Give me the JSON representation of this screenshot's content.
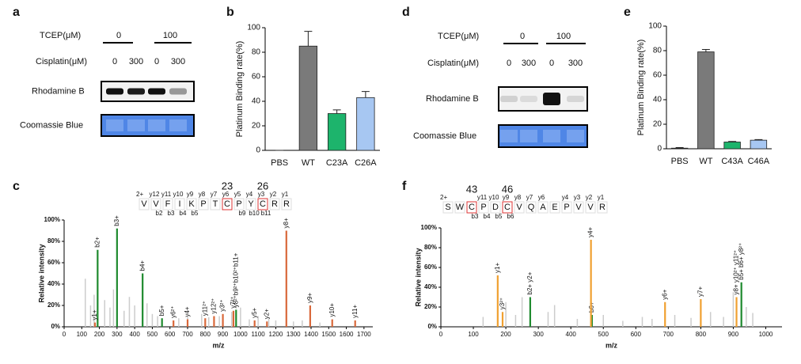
{
  "panel_labels": [
    "a",
    "b",
    "c",
    "d",
    "e",
    "f"
  ],
  "gels": [
    {
      "tcep_label": "TCEP(μM)",
      "tcep_levels": [
        "0",
        "100"
      ],
      "cisplatin_label": "Cisplatin(μM)",
      "cisplatin_levels": [
        "0",
        "300",
        "0",
        "300"
      ],
      "rows": [
        "Rhodamine B",
        "Coomassie Blue"
      ]
    },
    {
      "tcep_label": "TCEP(μM)",
      "tcep_levels": [
        "0",
        "100"
      ],
      "cisplatin_label": "Cisplatin(μM)",
      "cisplatin_levels": [
        "0",
        "300",
        "0",
        "300"
      ],
      "rows": [
        "Rhodamine B",
        "Coomassie Blue"
      ]
    }
  ],
  "peptides": [
    {
      "charge": "2+",
      "residues": [
        "V",
        "V",
        "F",
        "I",
        "K",
        "P",
        "T",
        "C",
        "P",
        "Y",
        "C",
        "R",
        "R"
      ],
      "sites": [
        "23",
        "26"
      ],
      "top_ions": [
        "y12",
        "y11",
        "y10",
        "y9",
        "y8",
        "y7",
        "y6",
        "y5",
        "y4",
        "y3",
        "y2",
        "y1"
      ],
      "bottom_ions": [
        "b2",
        "b3",
        "b4",
        "b5",
        "b9",
        "b10",
        "b11"
      ]
    },
    {
      "charge": "2+",
      "residues": [
        "S",
        "W",
        "C",
        "P",
        "D",
        "C",
        "V",
        "Q",
        "A",
        "E",
        "P",
        "V",
        "V",
        "R"
      ],
      "sites": [
        "43",
        "46"
      ],
      "top_ions": [
        "y11",
        "y10",
        "y9",
        "y8",
        "y7",
        "y6",
        "y4",
        "y3",
        "y2",
        "y1"
      ],
      "bottom_ions": [
        "b3",
        "b4",
        "b5",
        "b6"
      ]
    }
  ],
  "chart_data": [
    {
      "type": "bar",
      "y_label": "Platinum Binding rate(%)",
      "categories": [
        "PBS",
        "WT",
        "C23A",
        "C26A"
      ],
      "values": [
        0,
        85,
        30,
        43
      ],
      "errors": [
        0,
        12,
        3,
        5
      ],
      "colors": [
        "#555555",
        "#7a7a7a",
        "#1db46c",
        "#a7c7f2"
      ],
      "ylim": [
        0,
        100
      ],
      "yticks": [
        0,
        20,
        40,
        60,
        80,
        100
      ]
    },
    {
      "type": "spectrum",
      "x_label": "m/z",
      "y_label": "Relative intensity",
      "xlim": [
        0,
        1750
      ],
      "xticks": [
        0,
        100,
        200,
        300,
        400,
        500,
        600,
        700,
        800,
        900,
        1000,
        1100,
        1200,
        1300,
        1400,
        1500,
        1600,
        1700
      ],
      "ylim": [
        0,
        100
      ],
      "yticks": [
        {
          "value": 0,
          "label": "0%"
        },
        {
          "value": 20,
          "label": "20%"
        },
        {
          "value": 40,
          "label": "40%"
        },
        {
          "value": 60,
          "label": "60%"
        },
        {
          "value": 80,
          "label": "80%"
        },
        {
          "value": 100,
          "label": "100%"
        }
      ],
      "series": [
        {
          "color": "#cccccc",
          "x": [
            120,
            150,
            170,
            230,
            260,
            280,
            340,
            370,
            400,
            470,
            500,
            530,
            650,
            700,
            780,
            820,
            880,
            950,
            1000,
            1050,
            1100,
            1160,
            1200,
            1300,
            1350,
            1450
          ],
          "values": [
            45,
            20,
            30,
            25,
            18,
            35,
            15,
            28,
            20,
            22,
            12,
            10,
            8,
            10,
            12,
            9,
            10,
            14,
            18,
            7,
            10,
            8,
            6,
            5,
            6,
            4
          ]
        },
        {
          "color": "#1e8a2e",
          "x": [
            190,
            300,
            445,
            555,
            975
          ],
          "values": [
            72,
            92,
            50,
            8,
            16
          ],
          "labels": [
            "b2+",
            "b3+",
            "b4+",
            "b5+",
            "y8²⁺b9²⁺b10²⁺b11+"
          ]
        },
        {
          "color": "#d9683a",
          "x": [
            175,
            620,
            700,
            800,
            850,
            900,
            960,
            1080,
            1150,
            1260,
            1395,
            1520,
            1650
          ],
          "values": [
            4,
            6,
            7,
            8,
            10,
            12,
            15,
            6,
            5,
            90,
            20,
            7,
            6
          ],
          "labels": [
            "y1+",
            "y6²⁺",
            "y4+",
            "y11²⁺",
            "y12²⁺",
            "y3²⁺",
            "y7²⁺",
            "y5+",
            "y2+",
            "y8+",
            "y9+",
            "y10+",
            "y11+"
          ]
        }
      ]
    },
    {
      "type": "bar",
      "y_label": "Platinum Binding rate(%)",
      "categories": [
        "PBS",
        "WT",
        "C43A",
        "C46A"
      ],
      "values": [
        0.5,
        79,
        5.5,
        7
      ],
      "errors": [
        0.5,
        2,
        0.5,
        0.5
      ],
      "colors": [
        "#555555",
        "#7a7a7a",
        "#1db46c",
        "#a7c7f2"
      ],
      "ylim": [
        0,
        100
      ],
      "yticks": [
        0,
        20,
        40,
        60,
        80,
        100
      ]
    },
    {
      "type": "spectrum",
      "x_label": "m/z",
      "y_label": "Relative intensity",
      "xlim": [
        0,
        1050
      ],
      "xticks": [
        0,
        100,
        200,
        300,
        400,
        500,
        600,
        700,
        800,
        900,
        1000
      ],
      "ylim": [
        0,
        100
      ],
      "yticks": [
        {
          "value": 0,
          "label": "0%"
        },
        {
          "value": 20,
          "label": "20%"
        },
        {
          "value": 40,
          "label": "40%"
        },
        {
          "value": 60,
          "label": "60%"
        },
        {
          "value": 80,
          "label": "80%"
        },
        {
          "value": 100,
          "label": "100%"
        }
      ],
      "series": [
        {
          "color": "#cccccc",
          "x": [
            130,
            200,
            230,
            250,
            330,
            350,
            420,
            500,
            560,
            620,
            650,
            720,
            770,
            830,
            870,
            900,
            940,
            960
          ],
          "values": [
            10,
            25,
            12,
            30,
            15,
            22,
            8,
            12,
            6,
            10,
            8,
            12,
            9,
            15,
            10,
            35,
            20,
            14
          ]
        },
        {
          "color": "#1e8a2e",
          "x": [
            275,
            465,
            925
          ],
          "values": [
            30,
            12,
            45
          ],
          "labels": [
            "b2+ y2+",
            "b6+",
            "b5+ b6+ y8²⁺"
          ]
        },
        {
          "color": "#f0a030",
          "x": [
            175,
            190,
            462,
            690,
            800,
            910
          ],
          "values": [
            52,
            15,
            88,
            25,
            28,
            30
          ],
          "labels": [
            "y1+",
            "y3²⁺",
            "y4+",
            "y6+",
            "y7+",
            "y8+ y10²⁺ y11²⁺"
          ]
        }
      ]
    }
  ]
}
